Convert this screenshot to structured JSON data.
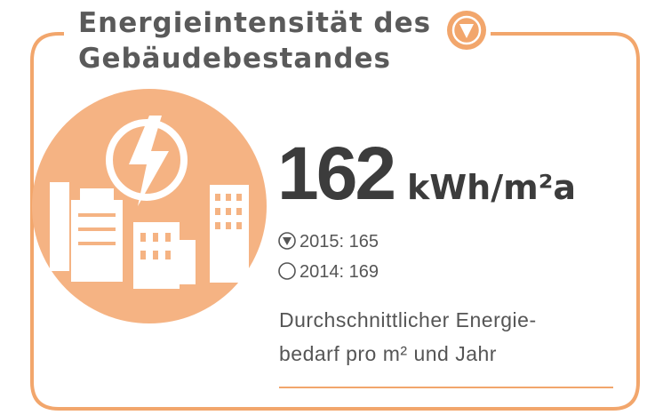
{
  "title": {
    "lines": [
      "Energieintensität des",
      "Gebäudebestandes"
    ]
  },
  "value": "162",
  "unit": "kWh/m²a",
  "comparisons": [
    {
      "label": "2015: 165"
    },
    {
      "label": "2014: 169"
    }
  ],
  "description": {
    "lines": [
      "Durchschnittlicher Energie-",
      "bedarf pro m² und Jahr"
    ]
  }
}
